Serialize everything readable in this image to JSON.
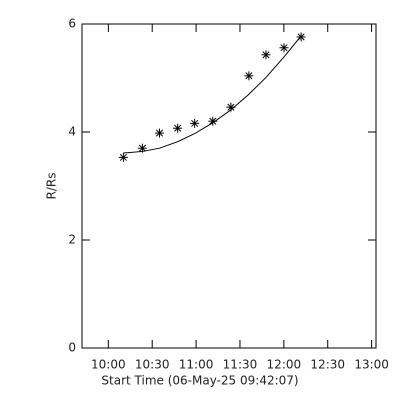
{
  "chart_data": {
    "type": "scatter",
    "xlabel": "Start Time (06-May-25 09:42:07)",
    "ylabel": "R/Rs",
    "x": [
      610.3,
      623.3,
      635.0,
      647.4,
      659.0,
      671.4,
      683.8,
      696.1,
      707.8,
      720.1,
      731.8
    ],
    "series": [
      {
        "color": "#000000",
        "marker": "asterisk",
        "values": [
          3.53,
          3.7,
          3.98,
          4.07,
          4.16,
          4.2,
          4.46,
          5.04,
          5.43,
          5.56,
          5.76
        ]
      },
      {
        "color": "#000000",
        "marker": "line",
        "values": [
          3.61,
          3.64,
          3.7,
          3.82,
          3.97,
          4.17,
          4.41,
          4.7,
          5.01,
          5.39,
          5.78
        ]
      }
    ],
    "xlim": [
      582,
      783
    ],
    "xticks": [
      {
        "value": 600,
        "label": "10:00"
      },
      {
        "value": 630,
        "label": "10:30"
      },
      {
        "value": 660,
        "label": "11:00"
      },
      {
        "value": 690,
        "label": "11:30"
      },
      {
        "value": 720,
        "label": "12:00"
      },
      {
        "value": 750,
        "label": "12:30"
      },
      {
        "value": 780,
        "label": "13:00"
      }
    ],
    "ylim": [
      0,
      6
    ],
    "yticks": [
      0,
      2,
      4,
      6
    ],
    "grid": false
  }
}
